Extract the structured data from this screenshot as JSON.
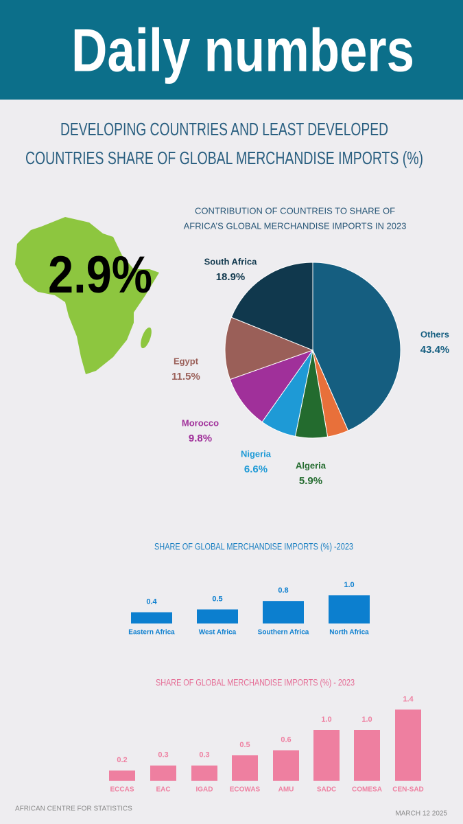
{
  "header": {
    "title": "Daily numbers"
  },
  "headline": {
    "lines": [
      "DEVELOPING COUNTRIES AND LEAST DEVELOPED",
      "COUNTRIES SHARE OF GLOBAL MERCHANDISE IMPORTS (%)"
    ]
  },
  "highlight": "2.9%",
  "chart_data": [
    {
      "type": "pie",
      "title": [
        "CONTRIBUTION OF COUNTREIS TO SHARE OF",
        "AFRICA’S GLOBAL MERCHANDISE IMPORTS IN 2023"
      ],
      "categories": [
        "Others",
        null,
        "Algeria",
        "Nigeria",
        "Morocco",
        "Egypt",
        "South Africa"
      ],
      "values": [
        43.4,
        3.9,
        5.9,
        6.6,
        9.8,
        11.5,
        18.9
      ],
      "value_labels": [
        "43.4%",
        null,
        "5.9%",
        "6.6%",
        "9.8%",
        "11.5%",
        "18.9%"
      ],
      "colors": [
        "#155e80",
        "#e8703a",
        "#236b2e",
        "#1e9ad6",
        "#a0309a",
        "#9a5f58",
        "#10384d"
      ]
    },
    {
      "type": "bar",
      "title": "SHARE OF GLOBAL MERCHANDISE IMPORTS (%) -2023",
      "categories": [
        "Eastern Africa",
        "West Africa",
        "Southern Africa",
        "North Africa"
      ],
      "values": [
        0.4,
        0.5,
        0.8,
        1.0
      ],
      "value_labels": [
        "0.4",
        "0.5",
        "0.8",
        "1.0"
      ],
      "color": "#0c7fcf"
    },
    {
      "type": "bar",
      "title": "SHARE OF GLOBAL MERCHANDISE IMPORTS (%) - 2023",
      "categories": [
        "ECCAS",
        "EAC",
        "IGAD",
        "ECOWAS",
        "AMU",
        "SADC",
        "COMESA",
        "CEN-SAD"
      ],
      "values": [
        0.2,
        0.3,
        0.3,
        0.5,
        0.6,
        1.0,
        1.0,
        1.4
      ],
      "value_labels": [
        "0.2",
        "0.3",
        "0.3",
        "0.5",
        "0.6",
        "1.0",
        "1.0",
        "1.4"
      ],
      "color": "#ee7fa0"
    }
  ],
  "footer": {
    "source": "AFRICAN CENTRE FOR STATISTICS",
    "date": "MARCH 12 2025"
  }
}
